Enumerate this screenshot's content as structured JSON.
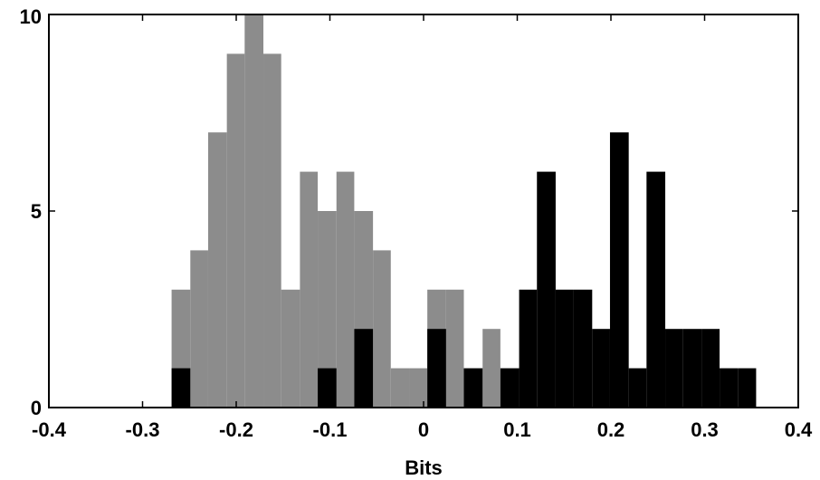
{
  "chart_data": {
    "type": "bar",
    "title": "",
    "xlabel": "Bits",
    "ylabel": "",
    "xlim": [
      -0.4,
      0.4
    ],
    "ylim": [
      0,
      10
    ],
    "bin_width": 0.0195,
    "grid": false,
    "x_ticks": [
      "-0.4",
      "-0.3",
      "-0.2",
      "-0.1",
      "0",
      "0.1",
      "0.2",
      "0.3",
      "0.4"
    ],
    "y_ticks": [
      "0",
      "5",
      "10"
    ],
    "series": [
      {
        "color": "#8c8c8c",
        "bins": [
          {
            "x0": -0.269,
            "x1": -0.249,
            "count": 3
          },
          {
            "x0": -0.249,
            "x1": -0.23,
            "count": 4
          },
          {
            "x0": -0.23,
            "x1": -0.21,
            "count": 7
          },
          {
            "x0": -0.21,
            "x1": -0.191,
            "count": 9
          },
          {
            "x0": -0.191,
            "x1": -0.171,
            "count": 10
          },
          {
            "x0": -0.171,
            "x1": -0.152,
            "count": 9
          },
          {
            "x0": -0.152,
            "x1": -0.132,
            "count": 3
          },
          {
            "x0": -0.132,
            "x1": -0.113,
            "count": 6
          },
          {
            "x0": -0.113,
            "x1": -0.093,
            "count": 5
          },
          {
            "x0": -0.093,
            "x1": -0.074,
            "count": 6
          },
          {
            "x0": -0.074,
            "x1": -0.054,
            "count": 5
          },
          {
            "x0": -0.054,
            "x1": -0.035,
            "count": 4
          },
          {
            "x0": -0.035,
            "x1": -0.015,
            "count": 1
          },
          {
            "x0": -0.015,
            "x1": 0.004,
            "count": 1
          },
          {
            "x0": 0.004,
            "x1": 0.024,
            "count": 3
          },
          {
            "x0": 0.024,
            "x1": 0.043,
            "count": 3
          },
          {
            "x0": 0.063,
            "x1": 0.082,
            "count": 2
          }
        ]
      },
      {
        "color": "#000000",
        "bins": [
          {
            "x0": -0.269,
            "x1": -0.249,
            "count": 1
          },
          {
            "x0": -0.113,
            "x1": -0.093,
            "count": 1
          },
          {
            "x0": -0.074,
            "x1": -0.054,
            "count": 2
          },
          {
            "x0": 0.004,
            "x1": 0.024,
            "count": 2
          },
          {
            "x0": 0.043,
            "x1": 0.063,
            "count": 1
          },
          {
            "x0": 0.082,
            "x1": 0.102,
            "count": 1
          },
          {
            "x0": 0.102,
            "x1": 0.121,
            "count": 3
          },
          {
            "x0": 0.121,
            "x1": 0.141,
            "count": 6
          },
          {
            "x0": 0.141,
            "x1": 0.16,
            "count": 3
          },
          {
            "x0": 0.16,
            "x1": 0.18,
            "count": 3
          },
          {
            "x0": 0.18,
            "x1": 0.199,
            "count": 2
          },
          {
            "x0": 0.199,
            "x1": 0.219,
            "count": 7
          },
          {
            "x0": 0.219,
            "x1": 0.238,
            "count": 1
          },
          {
            "x0": 0.238,
            "x1": 0.258,
            "count": 6
          },
          {
            "x0": 0.258,
            "x1": 0.277,
            "count": 2
          },
          {
            "x0": 0.277,
            "x1": 0.297,
            "count": 2
          },
          {
            "x0": 0.297,
            "x1": 0.316,
            "count": 2
          },
          {
            "x0": 0.316,
            "x1": 0.336,
            "count": 1
          },
          {
            "x0": 0.336,
            "x1": 0.355,
            "count": 1
          }
        ]
      }
    ]
  }
}
